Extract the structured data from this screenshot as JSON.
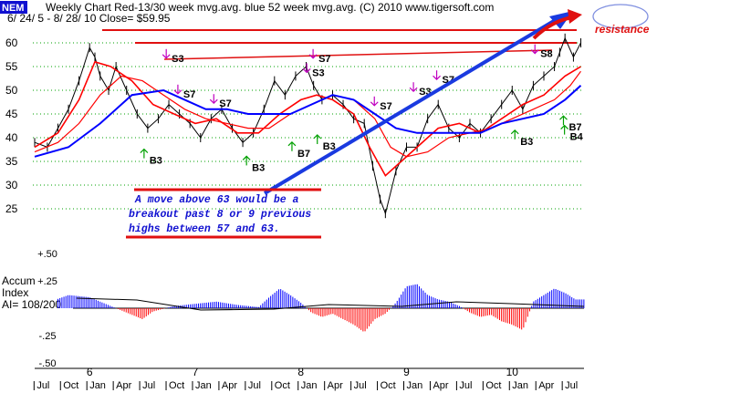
{
  "header": {
    "ticker": "NEM",
    "title_line1": "Weekly Chart  Red-13/30 week mvg.avg.   blue 52 week mvg.avg.  (C) 2010 www.tigersoft.com",
    "title_line2": "6/ 24/ 5 -  8/ 28/ 10    Close= $59.95"
  },
  "annotations": {
    "resistance": "resistance",
    "note_lines": [
      "A move above 63 would be a",
      "breakout past 8 or 9 previous",
      "highs between 57 and 63."
    ]
  },
  "colors": {
    "ma_short": "#ff0000",
    "ma_long": "#0000ff",
    "price": "#000000",
    "grid": "#00a000",
    "accum_pos": "#0000ff",
    "accum_neg": "#ff0000",
    "annot_blue": "#1a3ae0",
    "annot_red": "#e01010",
    "sig_green": "#00a000",
    "sig_magenta": "#c000c0"
  },
  "signals": [
    {
      "label": "S3",
      "year": 2006.76,
      "price": 56
    },
    {
      "label": "S7",
      "year": 2006.87,
      "price": 48.5
    },
    {
      "label": "S7",
      "year": 2007.21,
      "price": 46.5
    },
    {
      "label": "B3",
      "year": 2006.55,
      "price": 34.5
    },
    {
      "label": "B3",
      "year": 2007.52,
      "price": 33
    },
    {
      "label": "B7",
      "year": 2007.95,
      "price": 36
    },
    {
      "label": "B3",
      "year": 2008.19,
      "price": 37.5
    },
    {
      "label": "S7",
      "year": 2008.15,
      "price": 56
    },
    {
      "label": "S3",
      "year": 2008.09,
      "price": 53
    },
    {
      "label": "S7",
      "year": 2008.73,
      "price": 46
    },
    {
      "label": "S3",
      "year": 2009.1,
      "price": 49
    },
    {
      "label": "S7",
      "year": 2009.32,
      "price": 51.5
    },
    {
      "label": "S8",
      "year": 2010.25,
      "price": 57
    },
    {
      "label": "B3",
      "year": 2010.06,
      "price": 38.5
    },
    {
      "label": "B7",
      "year": 2010.52,
      "price": 41.5
    },
    {
      "label": "B4",
      "year": 2010.53,
      "price": 39.5
    }
  ],
  "accum": {
    "label_line1": "Accum",
    "label_line2": "Index",
    "label_line3": "AI= 108/200"
  },
  "chart_data": [
    {
      "type": "line",
      "title": "Weekly Chart  Red-13/30 week mvg.avg.   blue 52 week mvg.avg.",
      "ylim": [
        20,
        63
      ],
      "y_ticks": [
        25,
        30,
        35,
        40,
        45,
        50,
        55,
        60
      ],
      "x_labels": [
        {
          "label": "6",
          "year": 2006.0
        },
        {
          "label": "7",
          "year": 2007.0
        },
        {
          "label": "8",
          "year": 2008.0
        },
        {
          "label": "9",
          "year": 2009.0
        },
        {
          "label": "10",
          "year": 2010.0
        }
      ],
      "month_labels": [
        "Jul",
        "Oct",
        "Jan",
        "Apr",
        "Jul",
        "Oct",
        "Jan",
        "Apr",
        "Jul",
        "Oct",
        "Jan",
        "Apr",
        "Jul",
        "Oct",
        "Jan",
        "Apr",
        "Jul",
        "Oct",
        "Jan",
        "Apr",
        "Jul"
      ],
      "series": [
        {
          "name": "Weekly close",
          "x": [
            2005.48,
            2005.6,
            2005.7,
            2005.8,
            2005.9,
            2006.0,
            2006.05,
            2006.1,
            2006.18,
            2006.25,
            2006.35,
            2006.45,
            2006.55,
            2006.65,
            2006.75,
            2006.85,
            2006.95,
            2007.05,
            2007.15,
            2007.25,
            2007.35,
            2007.45,
            2007.55,
            2007.65,
            2007.75,
            2007.85,
            2007.95,
            2008.05,
            2008.12,
            2008.2,
            2008.3,
            2008.4,
            2008.5,
            2008.6,
            2008.68,
            2008.75,
            2008.8,
            2008.9,
            2009.0,
            2009.1,
            2009.2,
            2009.3,
            2009.4,
            2009.5,
            2009.6,
            2009.7,
            2009.8,
            2009.9,
            2010.0,
            2010.1,
            2010.2,
            2010.3,
            2010.4,
            2010.45,
            2010.5,
            2010.58,
            2010.65
          ],
          "values": [
            39,
            38,
            42,
            46,
            52,
            59,
            57,
            53,
            50,
            55,
            50,
            45,
            42,
            44,
            47,
            45,
            43,
            40,
            44,
            46,
            42,
            39,
            41,
            46,
            52,
            49,
            53,
            55,
            51,
            48,
            49,
            47,
            44,
            43,
            34,
            27,
            24,
            33,
            38,
            38,
            44,
            47,
            42,
            40,
            43,
            41,
            44,
            47,
            50,
            46,
            51,
            53,
            55,
            58,
            61,
            57,
            60
          ]
        },
        {
          "name": "Red 13-week mvg.avg.",
          "x": [
            2005.48,
            2005.7,
            2005.9,
            2006.05,
            2006.2,
            2006.4,
            2006.6,
            2006.8,
            2007.0,
            2007.2,
            2007.4,
            2007.6,
            2007.8,
            2008.0,
            2008.15,
            2008.3,
            2008.5,
            2008.65,
            2008.8,
            2008.95,
            2009.1,
            2009.3,
            2009.5,
            2009.7,
            2009.9,
            2010.1,
            2010.3,
            2010.5,
            2010.65
          ],
          "values": [
            38,
            41,
            48,
            56,
            55,
            52,
            47,
            45,
            43,
            44,
            41,
            41,
            45,
            48,
            49,
            48,
            45,
            38,
            32,
            35,
            38,
            42,
            43,
            41,
            44,
            47,
            49,
            53,
            55
          ]
        },
        {
          "name": "Red 30-week mvg.avg.",
          "x": [
            2005.48,
            2005.7,
            2005.9,
            2006.1,
            2006.3,
            2006.5,
            2006.7,
            2006.9,
            2007.1,
            2007.3,
            2007.5,
            2007.7,
            2007.9,
            2008.1,
            2008.3,
            2008.5,
            2008.7,
            2008.85,
            2009.0,
            2009.2,
            2009.4,
            2009.6,
            2009.8,
            2010.0,
            2010.2,
            2010.4,
            2010.55,
            2010.65
          ],
          "values": [
            37,
            39,
            43,
            49,
            53,
            52,
            49,
            46,
            44,
            43,
            42,
            42,
            45,
            47,
            49,
            48,
            44,
            38,
            36,
            37,
            40,
            41,
            42,
            44,
            46,
            48,
            51,
            54
          ]
        },
        {
          "name": "Blue 52-week mvg.avg.",
          "x": [
            2005.48,
            2005.8,
            2006.1,
            2006.4,
            2006.7,
            2006.9,
            2007.1,
            2007.3,
            2007.5,
            2007.7,
            2007.9,
            2008.1,
            2008.3,
            2008.5,
            2008.7,
            2008.9,
            2009.1,
            2009.3,
            2009.5,
            2009.7,
            2009.9,
            2010.1,
            2010.3,
            2010.5,
            2010.65
          ],
          "values": [
            36,
            38,
            43,
            49,
            50,
            48,
            46,
            46,
            45,
            45,
            45,
            47,
            49,
            48,
            45,
            42,
            41,
            41,
            41,
            41,
            43,
            44,
            45,
            48,
            51
          ]
        }
      ]
    },
    {
      "type": "bar",
      "title": "Accum Index",
      "ylim": [
        -0.5,
        0.5
      ],
      "y_ticks": [
        -0.5,
        -0.25,
        0.25,
        0.5
      ],
      "y_tick_labels": [
        "-.50",
        "-.25",
        "+.25",
        "+.50"
      ],
      "series": [
        {
          "name": "Accum Index",
          "x": [
            2005.6,
            2005.8,
            2006.0,
            2006.2,
            2006.4,
            2006.5,
            2006.6,
            2006.8,
            2007.0,
            2007.2,
            2007.4,
            2007.6,
            2007.7,
            2007.8,
            2007.9,
            2008.0,
            2008.1,
            2008.2,
            2008.3,
            2008.4,
            2008.5,
            2008.6,
            2008.7,
            2008.8,
            2008.9,
            2009.0,
            2009.1,
            2009.2,
            2009.3,
            2009.4,
            2009.5,
            2009.6,
            2009.7,
            2009.8,
            2009.9,
            2010.0,
            2010.1,
            2010.2,
            2010.3,
            2010.4,
            2010.5,
            2010.6
          ],
          "values": [
            0.05,
            0.12,
            0.1,
            0.02,
            -0.06,
            -0.1,
            -0.03,
            0.02,
            0.04,
            0.06,
            0.03,
            0.01,
            0.1,
            0.18,
            0.12,
            0.05,
            -0.04,
            -0.08,
            -0.05,
            -0.1,
            -0.15,
            -0.22,
            -0.1,
            -0.05,
            0.05,
            0.2,
            0.22,
            0.12,
            0.08,
            0.06,
            0.02,
            -0.04,
            -0.08,
            -0.06,
            -0.12,
            -0.15,
            -0.2,
            0.06,
            0.12,
            0.18,
            0.14,
            0.08
          ]
        }
      ]
    }
  ]
}
